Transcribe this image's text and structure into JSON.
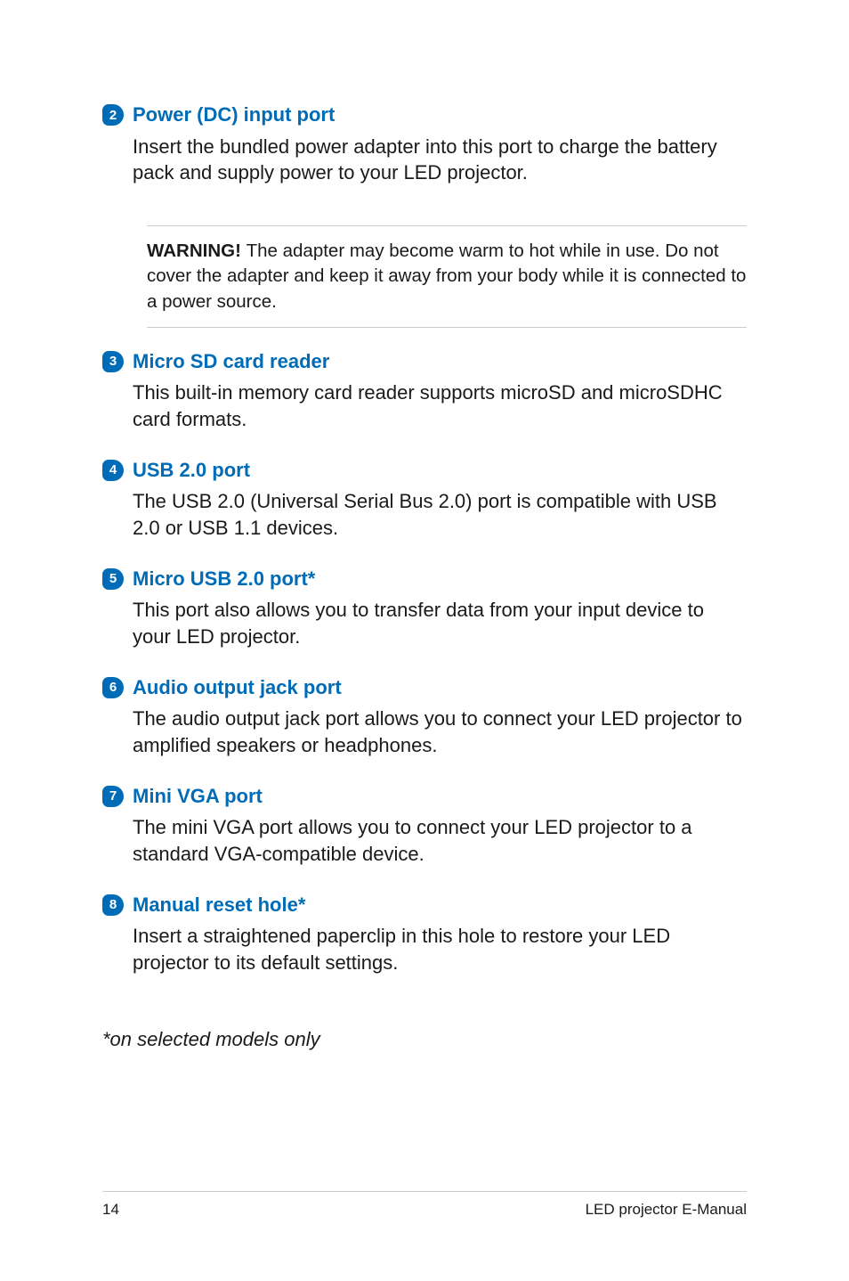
{
  "items": [
    {
      "num": "2",
      "title": "Power (DC) input port",
      "body": "Insert the bundled power adapter into this port to charge the battery pack and supply power to your LED projector.",
      "warning": "The adapter may become warm to hot while in use.  Do not cover the adapter and keep it away from your body while it is connected to a power source."
    },
    {
      "num": "3",
      "title": "Micro SD card reader",
      "body": "This built-in memory card reader supports microSD and microSDHC card formats."
    },
    {
      "num": "4",
      "title": "USB 2.0 port",
      "body": "The USB 2.0 (Universal Serial Bus 2.0) port is compatible with USB 2.0 or USB 1.1 devices."
    },
    {
      "num": "5",
      "title": "Micro USB 2.0 port*",
      "body": "This port also allows you to transfer data from your input device to your LED projector."
    },
    {
      "num": "6",
      "title": "Audio output jack port",
      "body": "The audio output jack port allows you to connect your LED projector to amplified speakers or headphones."
    },
    {
      "num": "7",
      "title": "Mini VGA port",
      "body": "The mini VGA port allows you to connect your LED projector to a standard VGA-compatible device."
    },
    {
      "num": "8",
      "title": "Manual reset hole*",
      "body": "Insert a straightened paperclip in this hole to restore your LED projector to its default settings."
    }
  ],
  "warning_label": "WARNING! ",
  "footnote": "*on selected models only",
  "footer": {
    "page": "14",
    "doc": "LED projector E-Manual"
  },
  "colors": {
    "accent": "#006bb6",
    "text": "#1a1a1a",
    "divider": "#cccccc",
    "badge_text": "#ffffff",
    "background": "#ffffff"
  }
}
